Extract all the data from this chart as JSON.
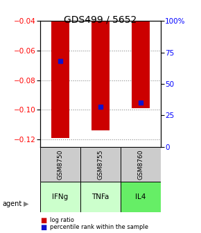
{
  "title": "GDS499 / 5652",
  "samples": [
    "GSM8750",
    "GSM8755",
    "GSM8760"
  ],
  "agents": [
    "IFNg",
    "TNFa",
    "IL4"
  ],
  "log_ratios": [
    -0.119,
    -0.114,
    -0.099
  ],
  "percentile_ranks": [
    68,
    32,
    35
  ],
  "ylim_left": [
    -0.125,
    -0.04
  ],
  "ylim_right": [
    0,
    100
  ],
  "yticks_left": [
    -0.12,
    -0.1,
    -0.08,
    -0.06,
    -0.04
  ],
  "yticks_right": [
    0,
    25,
    50,
    75,
    100
  ],
  "bar_color": "#cc0000",
  "dot_color": "#1111cc",
  "agent_colors": [
    "#ccffcc",
    "#ccffcc",
    "#66ee66"
  ],
  "sample_box_color": "#cccccc",
  "grid_color": "#888888",
  "title_fontsize": 10,
  "tick_fontsize": 7.5,
  "label_fontsize": 7
}
